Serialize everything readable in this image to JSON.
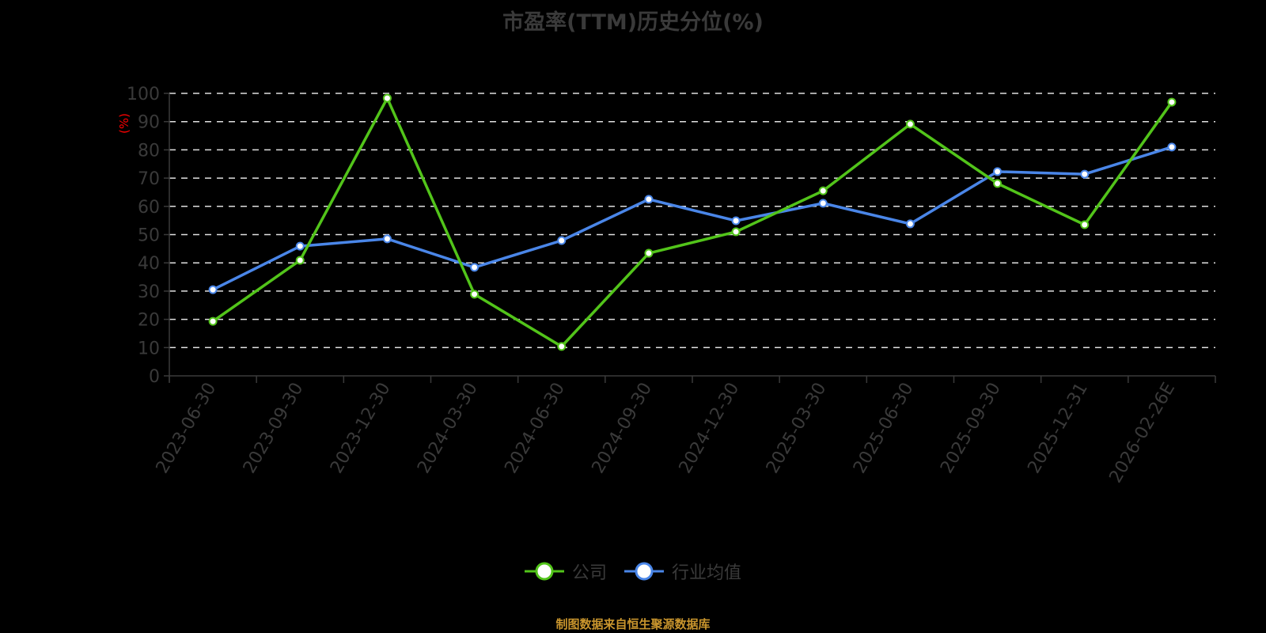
{
  "chart_data": {
    "type": "line",
    "title": "市盈率(TTM)历史分位(%)",
    "ylabel": "(%)",
    "xlabel": "",
    "ylim": [
      0,
      100
    ],
    "yticks": [
      0,
      10,
      20,
      30,
      40,
      50,
      60,
      70,
      80,
      90,
      100
    ],
    "grid": "horizontal dashed",
    "legend_position": "bottom",
    "categories": [
      "2023-06-30",
      "2023-09-30",
      "2023-12-30",
      "2024-03-30",
      "2024-06-30",
      "2024-09-30",
      "2024-12-30",
      "2025-03-30",
      "2025-06-30",
      "2025-09-30",
      "2025-12-31",
      "2026-02-26E"
    ],
    "series": [
      {
        "name": "公司",
        "color": "#52c41a",
        "values": [
          19.3,
          40.9,
          98.3,
          28.9,
          10.4,
          43.4,
          51.0,
          65.5,
          89.1,
          68.1,
          53.5,
          96.9
        ]
      },
      {
        "name": "行业均值",
        "color": "#4a86e8",
        "values": [
          30.5,
          45.9,
          48.5,
          38.4,
          47.9,
          62.5,
          54.9,
          61.1,
          53.8,
          72.3,
          71.4,
          81.0
        ]
      }
    ]
  },
  "header": {
    "title": "市盈率(TTM)历史分位(%)"
  },
  "legend": [
    {
      "label": "公司",
      "color": "#52c41a"
    },
    {
      "label": "行业均值",
      "color": "#4a86e8"
    }
  ],
  "footer": {
    "source": "制图数据来自恒生聚源数据库"
  }
}
